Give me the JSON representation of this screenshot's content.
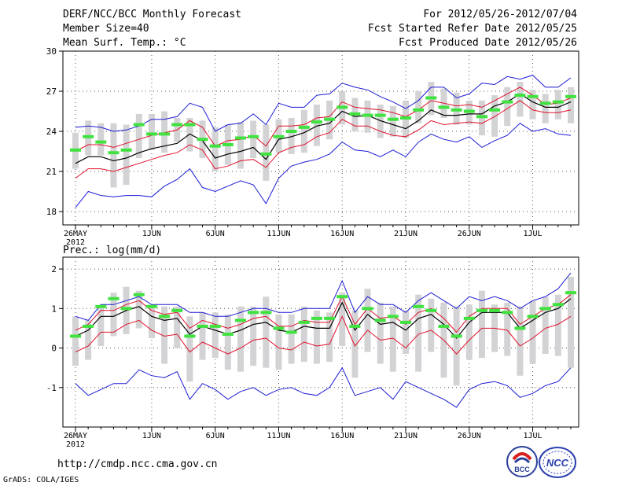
{
  "header": {
    "title": "DERF/NCC/BCC Monthly Forecast",
    "member_size": "Member Size=40",
    "variable": "Mean Surf. Temp.: °C",
    "forecast_period": "For 2012/05/26-2012/07/04",
    "start_date": "Fcst Started Refer Date 2012/05/25",
    "produced_date": "Fcst Produced Date 2012/05/26"
  },
  "footer": {
    "url": "http://cmdp.ncc.cma.gov.cn",
    "grads": "GrADS: COLA/IGES",
    "logo1_label": "BCC",
    "logo2_label": "NCC"
  },
  "colors": {
    "ensemble_bar": "#d3d3d5",
    "median": "#3fe23f",
    "mean": "#000000",
    "std_band": "#e0102a",
    "envelope": "#1a1ad6",
    "grid": "#555555"
  },
  "chart_data": [
    {
      "type": "line",
      "title": "Mean Surf. Temp.: °C",
      "x_ticks": [
        "26MAY",
        "1JUN",
        "6JUN",
        "11JUN",
        "16JUN",
        "21JUN",
        "26JUN",
        "1JUL"
      ],
      "x_tick_index": [
        0,
        6,
        11,
        16,
        21,
        26,
        31,
        36
      ],
      "x_year": "2012",
      "ylim": [
        17,
        30
      ],
      "y_ticks": [
        18,
        21,
        24,
        27,
        30
      ],
      "series": [
        {
          "name": "max",
          "values": [
            24.3,
            24.4,
            24.3,
            24.0,
            24.1,
            24.4,
            24.9,
            24.9,
            25.1,
            26.1,
            25.8,
            24.0,
            24.5,
            24.6,
            25.3,
            24.5,
            26.1,
            25.8,
            25.8,
            26.7,
            26.8,
            27.6,
            27.3,
            27.1,
            26.6,
            26.2,
            25.7,
            26.3,
            27.3,
            27.3,
            26.5,
            26.8,
            27.6,
            27.5,
            28.1,
            27.9,
            28.2,
            27.3,
            27.3,
            28.0
          ]
        },
        {
          "name": "mean_plus_std",
          "values": [
            22.5,
            23.0,
            23.0,
            22.8,
            23.1,
            23.4,
            23.7,
            23.9,
            24.1,
            24.8,
            24.3,
            22.9,
            23.3,
            23.4,
            23.7,
            22.9,
            24.4,
            24.4,
            24.5,
            25.0,
            25.1,
            26.2,
            25.8,
            25.7,
            25.6,
            25.4,
            25.1,
            25.6,
            26.3,
            26.1,
            25.9,
            26.0,
            25.8,
            26.3,
            26.8,
            27.3,
            26.7,
            26.0,
            26.1,
            26.5
          ]
        },
        {
          "name": "mean",
          "values": [
            21.6,
            22.1,
            22.1,
            21.8,
            22.0,
            22.4,
            22.7,
            22.9,
            23.1,
            23.8,
            23.3,
            22.0,
            22.3,
            22.5,
            22.8,
            21.9,
            23.4,
            23.6,
            23.9,
            24.4,
            24.6,
            25.5,
            25.1,
            25.2,
            24.8,
            24.5,
            24.2,
            24.8,
            25.6,
            25.2,
            25.2,
            25.3,
            25.3,
            25.9,
            26.2,
            26.8,
            26.2,
            25.8,
            25.8,
            26.2
          ]
        },
        {
          "name": "mean_minus_std",
          "values": [
            20.5,
            21.2,
            21.2,
            21.0,
            21.3,
            21.6,
            21.9,
            22.2,
            22.4,
            23.0,
            22.6,
            21.2,
            21.4,
            21.8,
            21.9,
            21.3,
            22.4,
            22.8,
            23.0,
            23.6,
            23.9,
            24.9,
            24.4,
            24.4,
            24.0,
            23.7,
            23.6,
            24.1,
            24.8,
            24.5,
            24.6,
            24.7,
            24.6,
            25.1,
            25.7,
            26.3,
            25.6,
            25.4,
            25.4,
            25.6
          ]
        },
        {
          "name": "min",
          "values": [
            18.3,
            19.5,
            19.2,
            19.1,
            19.2,
            19.2,
            19.1,
            19.9,
            20.4,
            21.2,
            19.8,
            19.5,
            19.9,
            20.3,
            20.0,
            18.6,
            20.5,
            21.4,
            21.7,
            21.9,
            22.3,
            23.2,
            22.6,
            22.5,
            22.1,
            22.6,
            22.1,
            23.2,
            23.8,
            23.4,
            23.2,
            23.6,
            22.8,
            23.3,
            23.7,
            24.6,
            24.0,
            24.2,
            23.8,
            23.7
          ]
        },
        {
          "name": "median",
          "values": [
            22.6,
            23.6,
            23.2,
            22.4,
            22.6,
            24.5,
            23.8,
            23.8,
            24.5,
            24.5,
            23.4,
            22.9,
            23.0,
            23.5,
            23.6,
            22.3,
            23.6,
            24.0,
            24.3,
            24.7,
            24.9,
            25.8,
            25.3,
            25.2,
            25.2,
            24.9,
            25.0,
            25.6,
            26.5,
            25.8,
            25.6,
            25.5,
            25.1,
            25.6,
            26.2,
            26.7,
            26.6,
            26.1,
            26.2,
            26.6
          ]
        },
        {
          "name": "bar_low",
          "values": [
            21.2,
            22.2,
            22.2,
            19.8,
            20.0,
            22.0,
            22.6,
            22.4,
            23.2,
            22.5,
            22.0,
            21.0,
            21.5,
            21.2,
            22.0,
            20.3,
            22.4,
            22.3,
            22.4,
            22.9,
            23.4,
            24.5,
            24.0,
            23.9,
            23.5,
            23.6,
            23.5,
            24.6,
            25.2,
            25.0,
            24.5,
            24.5,
            23.7,
            23.6,
            24.4,
            25.1,
            24.9,
            24.6,
            24.9,
            24.6
          ]
        },
        {
          "name": "bar_high",
          "values": [
            23.9,
            24.8,
            24.6,
            24.6,
            24.5,
            25.3,
            25.3,
            25.5,
            25.0,
            25.0,
            24.8,
            24.3,
            24.5,
            24.7,
            24.8,
            24.5,
            24.9,
            25.0,
            25.6,
            26.0,
            26.3,
            27.0,
            26.5,
            26.3,
            26.0,
            25.9,
            26.3,
            27.0,
            27.7,
            27.2,
            26.9,
            26.3,
            26.3,
            26.7,
            27.3,
            27.7,
            27.1,
            26.8,
            27.1,
            27.3
          ]
        }
      ]
    },
    {
      "type": "line",
      "title": "Prec.: log(mm/d)",
      "x_ticks": [
        "26MAY",
        "1JUN",
        "6JUN",
        "11JUN",
        "16JUN",
        "21JUN",
        "26JUN",
        "1JUL"
      ],
      "x_tick_index": [
        0,
        6,
        11,
        16,
        21,
        26,
        31,
        36
      ],
      "x_year": "2012",
      "ylim": [
        -2,
        2.3
      ],
      "y_ticks": [
        -1,
        0,
        1,
        2
      ],
      "series": [
        {
          "name": "max",
          "values": [
            0.8,
            0.7,
            1.1,
            1.1,
            1.2,
            1.3,
            1.1,
            1.1,
            1.1,
            0.9,
            0.9,
            0.8,
            0.8,
            0.9,
            1.0,
            1.0,
            0.9,
            0.9,
            1.0,
            1.0,
            1.0,
            1.7,
            0.9,
            1.3,
            1.1,
            1.1,
            0.9,
            1.2,
            1.4,
            1.2,
            1.0,
            1.3,
            1.2,
            1.3,
            1.2,
            1.0,
            1.2,
            1.3,
            1.5,
            1.9
          ]
        },
        {
          "name": "mean_plus_std",
          "values": [
            0.45,
            0.6,
            0.95,
            0.95,
            1.1,
            1.2,
            0.95,
            0.85,
            0.9,
            0.5,
            0.7,
            0.6,
            0.5,
            0.6,
            0.75,
            0.8,
            0.55,
            0.55,
            0.7,
            0.65,
            0.65,
            1.3,
            0.6,
            1.0,
            0.75,
            0.8,
            0.6,
            0.9,
            1.0,
            0.75,
            0.4,
            0.8,
            1.0,
            1.0,
            1.0,
            0.6,
            0.8,
            1.0,
            1.1,
            1.35
          ]
        },
        {
          "name": "mean",
          "values": [
            0.3,
            0.45,
            0.8,
            0.8,
            0.95,
            1.05,
            0.8,
            0.7,
            0.75,
            0.35,
            0.55,
            0.45,
            0.35,
            0.45,
            0.6,
            0.65,
            0.45,
            0.4,
            0.55,
            0.5,
            0.5,
            1.15,
            0.45,
            0.85,
            0.6,
            0.65,
            0.45,
            0.75,
            0.85,
            0.6,
            0.25,
            0.65,
            0.9,
            0.9,
            0.9,
            0.5,
            0.7,
            0.9,
            1.0,
            1.25
          ]
        },
        {
          "name": "mean_minus_std",
          "values": [
            -0.1,
            0.05,
            0.4,
            0.4,
            0.6,
            0.7,
            0.45,
            0.3,
            0.35,
            -0.1,
            0.15,
            0.0,
            -0.15,
            0.0,
            0.2,
            0.25,
            0.0,
            -0.05,
            0.15,
            0.05,
            0.1,
            0.8,
            0.05,
            0.45,
            0.2,
            0.25,
            0.0,
            0.35,
            0.45,
            0.2,
            -0.15,
            0.2,
            0.5,
            0.5,
            0.45,
            0.05,
            0.25,
            0.5,
            0.6,
            0.8
          ]
        },
        {
          "name": "min",
          "values": [
            -0.9,
            -1.2,
            -1.05,
            -0.9,
            -0.9,
            -0.55,
            -0.7,
            -0.75,
            -0.6,
            -1.3,
            -0.9,
            -1.05,
            -1.3,
            -1.1,
            -1.0,
            -1.2,
            -1.05,
            -1.0,
            -1.15,
            -1.2,
            -1.0,
            -0.5,
            -1.2,
            -1.1,
            -1.0,
            -1.3,
            -0.85,
            -1.0,
            -1.15,
            -1.3,
            -1.5,
            -1.05,
            -0.9,
            -0.85,
            -0.95,
            -1.25,
            -1.15,
            -0.95,
            -0.85,
            -0.5
          ]
        },
        {
          "name": "median",
          "values": [
            0.3,
            0.55,
            1.05,
            1.25,
            1.0,
            1.35,
            1.05,
            0.8,
            0.95,
            0.3,
            0.55,
            0.55,
            0.35,
            0.7,
            0.9,
            0.9,
            0.5,
            0.4,
            0.65,
            0.75,
            0.75,
            1.3,
            0.55,
            1.0,
            0.7,
            0.8,
            0.65,
            1.05,
            0.95,
            0.55,
            0.3,
            0.75,
            0.95,
            0.95,
            0.9,
            0.5,
            0.8,
            1.0,
            1.1,
            1.4
          ]
        },
        {
          "name": "bar_low",
          "values": [
            -0.45,
            -0.3,
            0.05,
            0.3,
            0.35,
            0.5,
            0.25,
            -0.4,
            0.0,
            -0.85,
            -0.3,
            -0.25,
            -0.55,
            -0.6,
            -0.45,
            -0.5,
            -0.55,
            -0.4,
            -0.35,
            -0.4,
            -0.35,
            0.05,
            -0.75,
            -0.1,
            -0.4,
            -0.6,
            -0.15,
            -0.6,
            -0.1,
            -0.75,
            -0.95,
            -0.3,
            -0.25,
            -0.1,
            -0.2,
            -0.7,
            -0.4,
            -0.15,
            -0.2,
            -0.5
          ]
        },
        {
          "name": "bar_high",
          "values": [
            0.8,
            0.7,
            1.05,
            1.4,
            1.55,
            1.45,
            1.1,
            1.05,
            1.05,
            0.8,
            0.9,
            0.9,
            0.85,
            1.05,
            1.05,
            1.3,
            0.85,
            0.85,
            1.05,
            0.95,
            0.9,
            1.4,
            0.95,
            1.5,
            1.15,
            1.05,
            0.95,
            1.35,
            1.25,
            1.15,
            1.05,
            1.1,
            1.45,
            1.1,
            1.15,
            1.05,
            1.2,
            1.3,
            1.35,
            1.8
          ]
        }
      ]
    }
  ]
}
